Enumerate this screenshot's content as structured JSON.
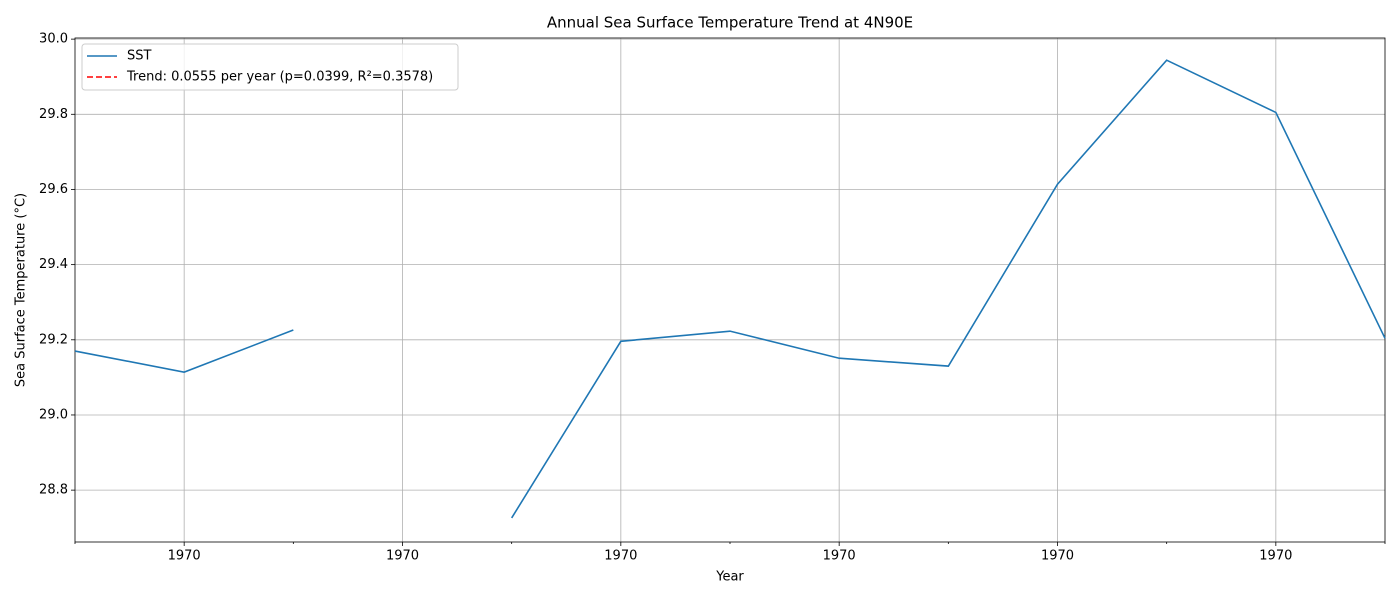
{
  "chart_data": {
    "type": "line",
    "title": "Annual Sea Surface Temperature Trend at 4N90E",
    "x_label": "Year",
    "y_label": "Sea Surface Temperature (°C)",
    "categories": [
      null,
      "1970",
      null,
      "1970",
      null,
      "1970",
      null,
      "1970",
      null,
      "1970",
      null,
      "1970",
      null
    ],
    "series": [
      {
        "name": "SST",
        "color": "#1f77b4",
        "dash": false,
        "values": [
          29.17,
          29.114,
          29.226,
          null,
          28.726,
          29.196,
          29.223,
          29.151,
          29.13,
          29.614,
          29.944,
          29.805,
          29.204
        ]
      },
      {
        "name": "Trend: 0.0555 per year (p=0.0399, R²=0.3578)",
        "color": "#ff0000",
        "dash": true,
        "values": [
          null,
          null,
          null,
          null,
          null,
          null,
          null,
          null,
          null,
          null,
          null,
          null,
          null
        ]
      }
    ],
    "ylim": [
      28.662,
      30.003
    ],
    "yticks": [
      28.8,
      {
        "value": 29,
        "label": "29.0"
      },
      29.2,
      29.4,
      29.6,
      29.8,
      {
        "value": 30,
        "label": "30.0"
      }
    ],
    "grid": true,
    "legend": "upper left"
  }
}
